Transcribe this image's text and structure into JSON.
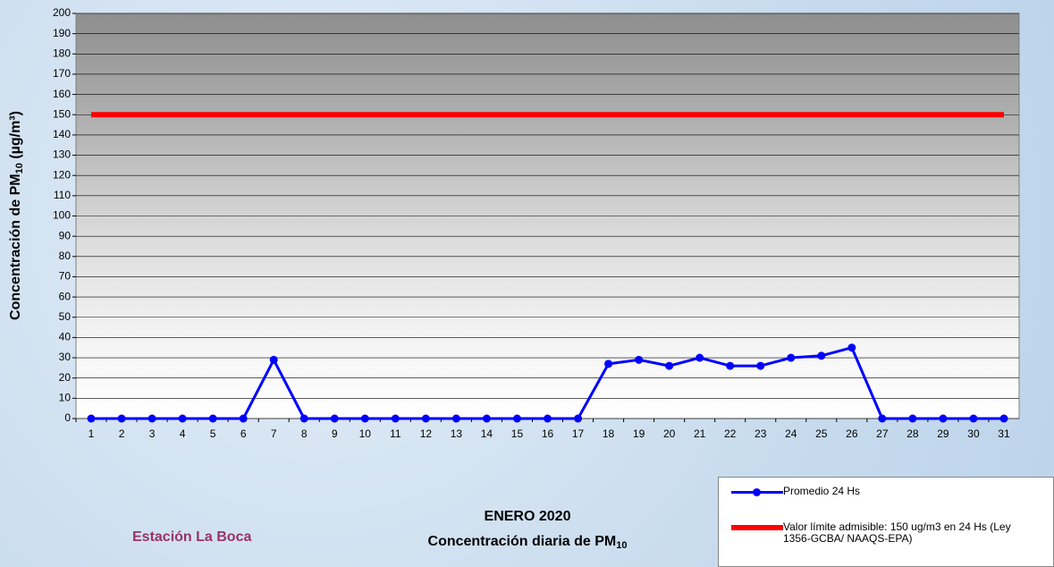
{
  "chart_data": {
    "type": "line",
    "title": [
      "ENERO 2020",
      "Concentración diaria de PM",
      "10"
    ],
    "ylabel": [
      "Concentración de PM",
      "10",
      " (µg/m³)"
    ],
    "annotation": "Estación La Boca",
    "categories": [
      "1",
      "2",
      "3",
      "4",
      "5",
      "6",
      "7",
      "8",
      "9",
      "10",
      "11",
      "12",
      "13",
      "14",
      "15",
      "16",
      "17",
      "18",
      "19",
      "20",
      "21",
      "22",
      "23",
      "24",
      "25",
      "26",
      "27",
      "28",
      "29",
      "30",
      "31"
    ],
    "series": [
      {
        "name": "Promedio 24 Hs",
        "color": "#0000ff",
        "markers": true,
        "values": [
          0,
          0,
          0,
          0,
          0,
          0,
          29,
          0,
          0,
          0,
          0,
          0,
          0,
          0,
          0,
          0,
          0,
          27,
          29,
          26,
          30,
          26,
          26,
          30,
          31,
          35,
          0,
          0,
          0,
          0,
          0
        ]
      },
      {
        "name": "Valor límite admisible: 150 ug/m3 en 24 Hs (Ley 1356-GCBA/ NAAQS-EPA)",
        "color": "#ff0000",
        "markers": false,
        "values": [
          150,
          150,
          150,
          150,
          150,
          150,
          150,
          150,
          150,
          150,
          150,
          150,
          150,
          150,
          150,
          150,
          150,
          150,
          150,
          150,
          150,
          150,
          150,
          150,
          150,
          150,
          150,
          150,
          150,
          150,
          150
        ]
      }
    ],
    "ylim": [
      0,
      200
    ],
    "yticks": [
      0,
      10,
      20,
      30,
      40,
      50,
      60,
      70,
      80,
      90,
      100,
      110,
      120,
      130,
      140,
      150,
      160,
      170,
      180,
      190,
      200
    ],
    "grid": true
  }
}
